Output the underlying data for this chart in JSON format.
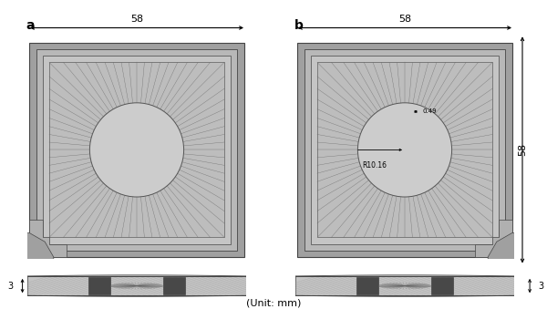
{
  "fig_width": 6.0,
  "fig_height": 3.39,
  "dpi": 100,
  "bg_color": "#ffffff",
  "label_a": "a",
  "label_b": "b",
  "dim_58_top": "58",
  "dim_58_side": "58",
  "dim_3_left": "3",
  "dim_3_right": "3",
  "dim_049": "0.49",
  "dim_R1016": "R10.16",
  "unit_label": "(Unit: mm)",
  "c_outermost": "#a8a8a8",
  "c_frame1": "#b5b5b5",
  "c_frame2": "#c2c2c2",
  "c_inner": "#c8c8c8",
  "c_fin_bg": "#c0c0c0",
  "c_circle": "#cbcbcb",
  "c_edge": "#555555",
  "c_radial": "#787878",
  "c_pipe_light": "#d8d8d8",
  "c_pipe_dark": "#888888",
  "n_radial": 72
}
